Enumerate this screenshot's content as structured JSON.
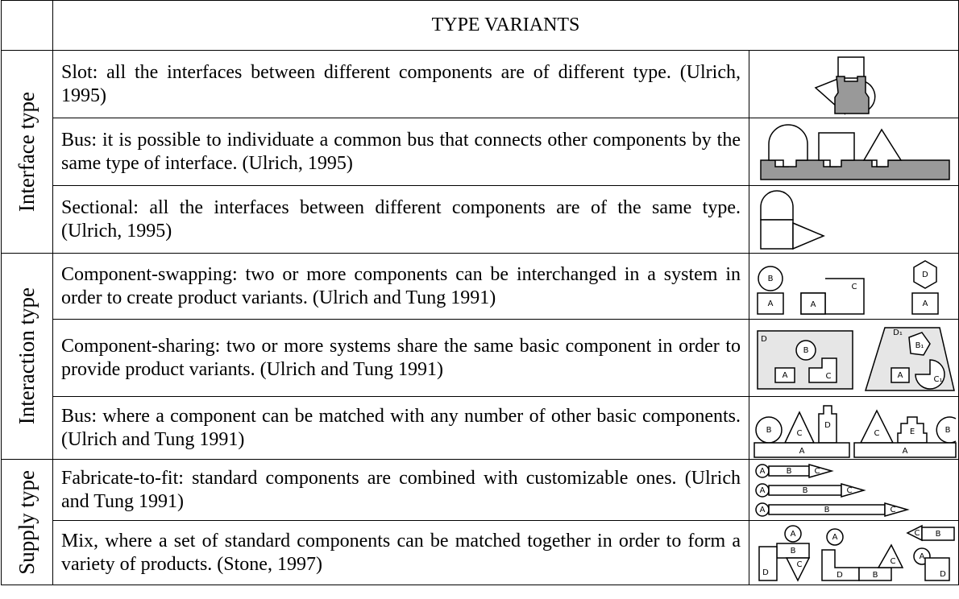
{
  "header": {
    "title": "TYPE VARIANTS"
  },
  "groups": [
    {
      "label": "Interface type",
      "rows": [
        {
          "text": "Slot: all the interfaces between different components are of different type. (Ulrich, 1995)"
        },
        {
          "text": "Bus: it is possible to individuate a common bus that connects other components by the same type of interface. (Ulrich, 1995)"
        },
        {
          "text": "Sectional: all the interfaces between different components are of the same type. (Ulrich, 1995)"
        }
      ]
    },
    {
      "label": "Interaction type",
      "rows": [
        {
          "text": "Component-swapping: two or more components can be interchanged in a system in order to create product variants. (Ulrich and Tung 1991)",
          "figure_labels": [
            "B",
            "A",
            "A",
            "C",
            "D",
            "A"
          ]
        },
        {
          "text": "Component-sharing: two or more systems share the same basic component in order to provide product variants. (Ulrich and Tung 1991)",
          "figure_labels": [
            "D",
            "B",
            "A",
            "C",
            "D₁",
            "B₁",
            "A",
            "C₁"
          ]
        },
        {
          "text": "Bus: where a component can be matched with any number of other basic components. (Ulrich and Tung 1991)",
          "figure_labels": [
            "B",
            "C",
            "D",
            "A",
            "C",
            "E",
            "B",
            "A"
          ]
        }
      ]
    },
    {
      "label": "Supply type",
      "rows": [
        {
          "text": "Fabricate-to-fit: standard components are combined with customizable ones. (Ulrich and Tung 1991)",
          "figure_labels": [
            "A",
            "B",
            "C",
            "A",
            "B",
            "C",
            "A",
            "B",
            "C"
          ]
        },
        {
          "text": "Mix, where a set of standard components can be matched together in order to form a variety of products. (Stone, 1997)",
          "figure_labels": [
            "A",
            "B",
            "D",
            "C",
            "A",
            "D",
            "B",
            "C",
            "C",
            "B",
            "A",
            "D"
          ]
        }
      ]
    }
  ]
}
